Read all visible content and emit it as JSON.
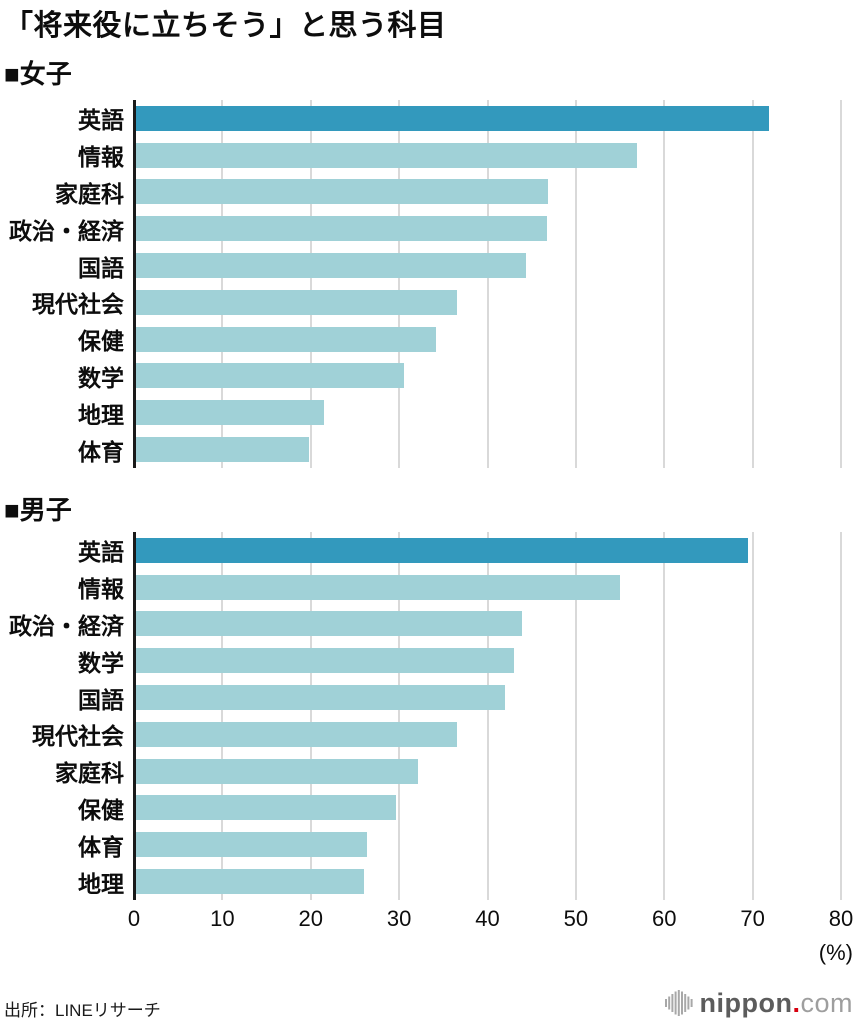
{
  "title": "「将来役に立ちそう」と思う科目",
  "source": "出所：LINEリサーチ",
  "logo": {
    "name": "nippon",
    "dot": ".",
    "com": "com",
    "icon": "soundwave-bars-icon"
  },
  "colors": {
    "bar_highlight": "#3399bd",
    "bar_normal": "#a0d1d7",
    "gridline": "#d9d9d9",
    "axis": "#1a1a1a",
    "logo_red": "#d7000f"
  },
  "axis": {
    "max": 80,
    "tick_step": 10,
    "tick_labels": [
      "0",
      "10",
      "20",
      "30",
      "40",
      "50",
      "60",
      "70",
      "80"
    ],
    "unit": "(%)"
  },
  "chart_data": [
    {
      "type": "bar",
      "orientation": "horizontal",
      "title": "■女子",
      "categories": [
        "英語",
        "情報",
        "家庭科",
        "政治・経済",
        "国語",
        "現代社会",
        "保健",
        "数学",
        "地理",
        "体育"
      ],
      "values": [
        71.8,
        56.9,
        46.9,
        46.7,
        44.3,
        36.6,
        34.2,
        30.6,
        21.5,
        19.8
      ],
      "highlight_index": 0,
      "xlim": [
        0,
        80
      ],
      "grid": true,
      "legend": false
    },
    {
      "type": "bar",
      "orientation": "horizontal",
      "title": "■男子",
      "categories": [
        "英語",
        "情報",
        "政治・経済",
        "数学",
        "国語",
        "現代社会",
        "家庭科",
        "保健",
        "体育",
        "地理"
      ],
      "values": [
        69.5,
        55.0,
        43.9,
        43.0,
        42.0,
        36.6,
        32.1,
        29.6,
        26.4,
        26.0
      ],
      "highlight_index": 0,
      "xlim": [
        0,
        80
      ],
      "grid": true,
      "legend": false
    }
  ]
}
